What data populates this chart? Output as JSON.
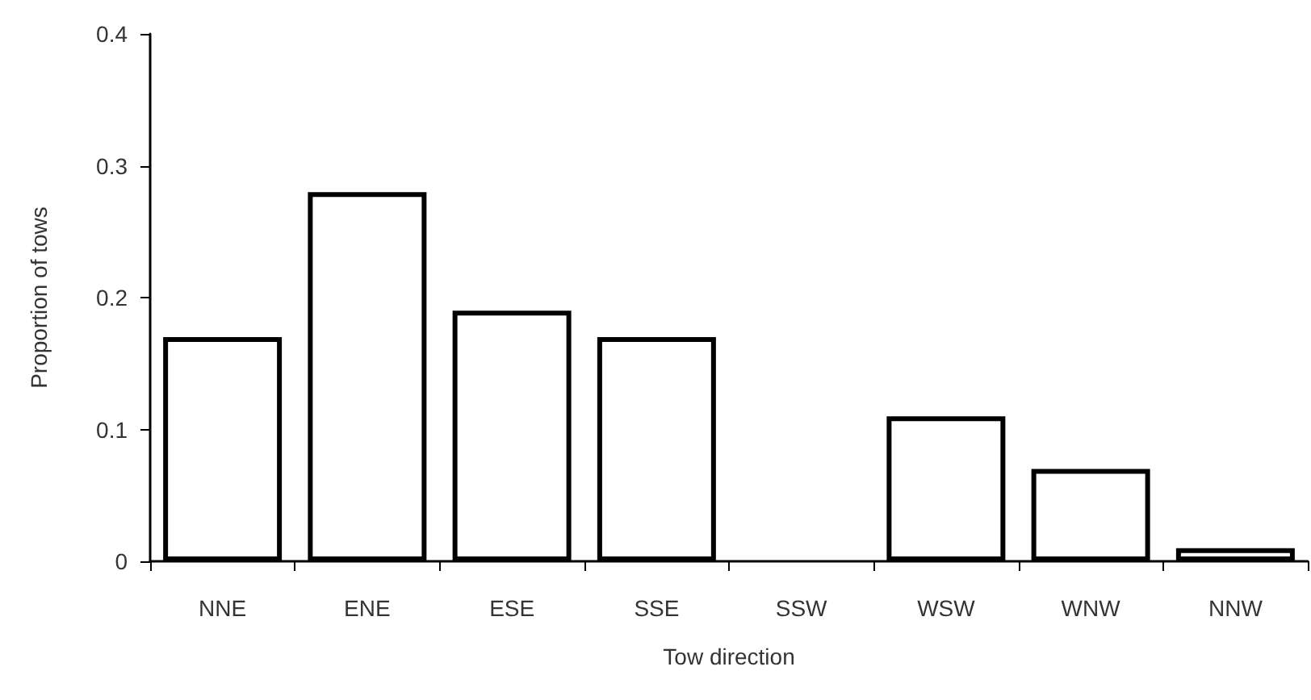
{
  "chart_data": {
    "type": "bar",
    "xlabel": "Tow direction",
    "ylabel": "Proportion of tows",
    "categories": [
      "NNE",
      "ENE",
      "ESE",
      "SSE",
      "SSW",
      "WSW",
      "WNW",
      "NNW"
    ],
    "values": [
      0.17,
      0.28,
      0.19,
      0.17,
      0,
      0.11,
      0.07,
      0.01
    ],
    "color": "#ffffff",
    "ylim": [
      0,
      0.4
    ],
    "yticks": [
      0,
      0.1,
      0.2,
      0.3,
      0.4
    ],
    "grid": false
  }
}
